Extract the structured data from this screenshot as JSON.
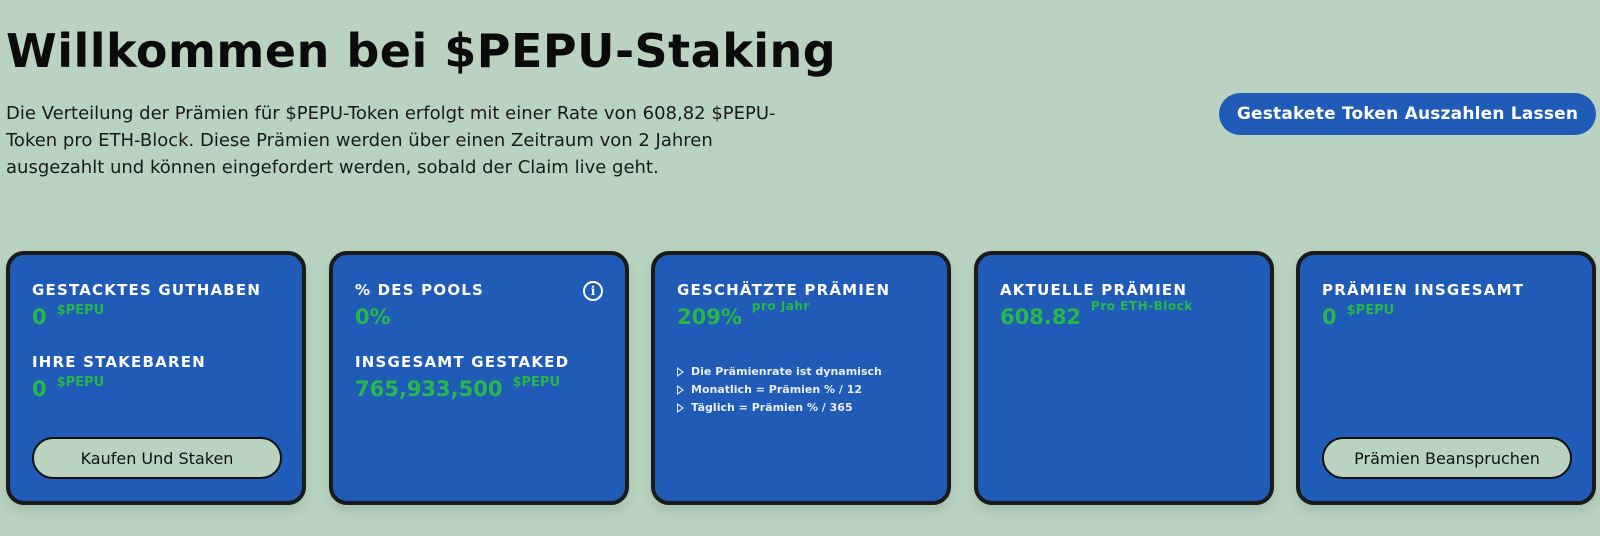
{
  "header": {
    "title": "Willkommen bei $PEPU-Staking",
    "intro": "Die Verteilung der Prämien für $PEPU-Token erfolgt mit einer Rate von 608,82 $PEPU-Token pro ETH-Block. Diese Prämien werden über einen Zeitraum von 2 Jahren ausgezahlt und können eingefordert werden, sobald der Claim live geht.",
    "withdraw_label": "Gestakete Token Auszahlen Lassen"
  },
  "cards": {
    "staked": {
      "label": "GESTACKTES GUTHABEN",
      "value": "0",
      "unit": "$PEPU",
      "stakeable_label": "IHRE STAKEBAREN",
      "stakeable_value": "0",
      "stakeable_unit": "$PEPU",
      "button_label": "Kaufen Und Staken"
    },
    "pool": {
      "label": "% DES POOLS",
      "value": "0%",
      "total_label": "INSGESAMT GESTAKED",
      "total_value": "765,933,500",
      "total_unit": "$PEPU",
      "info_icon": "info-icon"
    },
    "estimated": {
      "label": "GESCHÄTZTE PRÄMIEN",
      "value": "209%",
      "unit": "pro Jahr",
      "notes": [
        "Die Prämienrate ist dynamisch",
        "Monatlich = Prämien % / 12",
        "Täglich = Prämien % / 365"
      ]
    },
    "current": {
      "label": "AKTUELLE PRÄMIEN",
      "value": "608.82",
      "unit": "Pro ETH-Block"
    },
    "total": {
      "label": "PRÄMIEN INSGESAMT",
      "value": "0",
      "unit": "$PEPU",
      "button_label": "Prämien Beanspruchen"
    }
  },
  "colors": {
    "background": "#b9d3c0",
    "card": "#215bb8",
    "accent_green": "#27b84a",
    "button_blue": "#215bb8"
  }
}
